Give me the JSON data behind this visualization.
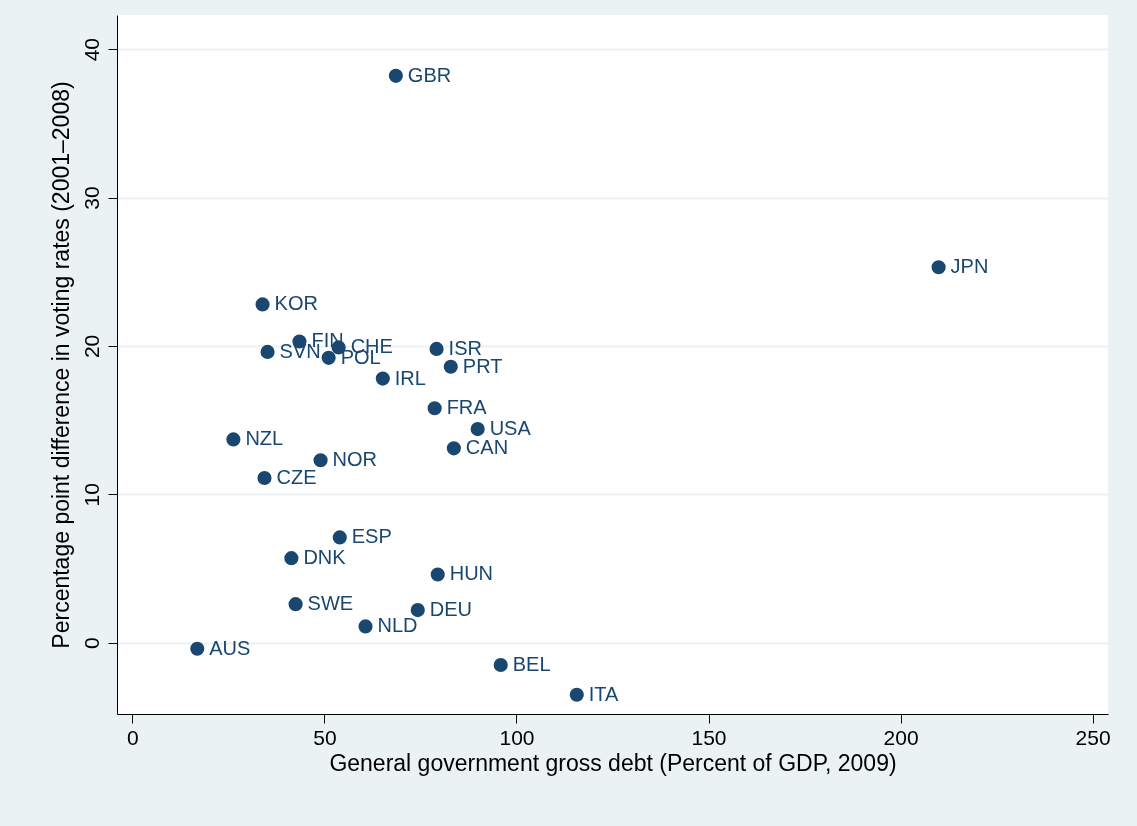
{
  "chart_data": {
    "type": "scatter",
    "xlabel": "General government gross debt (Percent of GDP, 2009)",
    "ylabel": "Percentage point difference in voting rates (2001–2008)",
    "xlim": [
      -4,
      254
    ],
    "xticks": [
      0,
      50,
      100,
      150,
      200,
      250
    ],
    "ylim": [
      -4.8,
      42.3
    ],
    "yticks": [
      0,
      10,
      20,
      30,
      40
    ],
    "grid": "y",
    "marker": "circle",
    "series": [
      {
        "color": "#1a476f",
        "x": [
          68.6,
          209.9,
          33.9,
          43.5,
          53.7,
          35.2,
          51.1,
          79.2,
          82.9,
          65.2,
          78.7,
          89.9,
          83.7,
          26.3,
          49.0,
          34.4,
          54.0,
          41.4,
          79.5,
          42.5,
          74.3,
          60.7,
          16.9,
          95.9,
          115.7
        ],
        "values": [
          38.2,
          25.3,
          22.8,
          20.3,
          19.9,
          19.6,
          19.2,
          19.8,
          18.6,
          17.8,
          15.8,
          14.4,
          13.1,
          13.7,
          12.3,
          11.1,
          7.1,
          5.7,
          4.6,
          2.6,
          2.2,
          1.1,
          -0.4,
          -1.5,
          -3.5
        ]
      }
    ],
    "annotations": [
      {
        "text": "GBR",
        "x": 68.6,
        "y": 38.2
      },
      {
        "text": "JPN",
        "x": 209.9,
        "y": 25.3
      },
      {
        "text": "KOR",
        "x": 33.9,
        "y": 22.8
      },
      {
        "text": "FIN",
        "x": 43.5,
        "y": 20.3
      },
      {
        "text": "CHE",
        "x": 53.7,
        "y": 19.9
      },
      {
        "text": "SVN",
        "x": 35.2,
        "y": 19.6
      },
      {
        "text": "POL",
        "x": 51.1,
        "y": 19.2
      },
      {
        "text": "ISR",
        "x": 79.2,
        "y": 19.8
      },
      {
        "text": "PRT",
        "x": 82.9,
        "y": 18.6
      },
      {
        "text": "IRL",
        "x": 65.2,
        "y": 17.8
      },
      {
        "text": "FRA",
        "x": 78.7,
        "y": 15.8
      },
      {
        "text": "USA",
        "x": 89.9,
        "y": 14.4
      },
      {
        "text": "CAN",
        "x": 83.7,
        "y": 13.1
      },
      {
        "text": "NZL",
        "x": 26.3,
        "y": 13.7
      },
      {
        "text": "NOR",
        "x": 49.0,
        "y": 12.3
      },
      {
        "text": "CZE",
        "x": 34.4,
        "y": 11.1
      },
      {
        "text": "ESP",
        "x": 54.0,
        "y": 7.1
      },
      {
        "text": "DNK",
        "x": 41.4,
        "y": 5.7
      },
      {
        "text": "HUN",
        "x": 79.5,
        "y": 4.6
      },
      {
        "text": "SWE",
        "x": 42.5,
        "y": 2.6
      },
      {
        "text": "DEU",
        "x": 74.3,
        "y": 2.2
      },
      {
        "text": "NLD",
        "x": 60.7,
        "y": 1.1
      },
      {
        "text": "AUS",
        "x": 16.9,
        "y": -0.4
      },
      {
        "text": "BEL",
        "x": 95.9,
        "y": -1.5
      },
      {
        "text": "ITA",
        "x": 115.7,
        "y": -3.5
      }
    ]
  }
}
